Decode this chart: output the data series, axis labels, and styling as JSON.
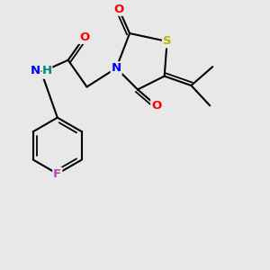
{
  "background_color": "#e8e8e8",
  "atom_colors": {
    "O": "#ff0000",
    "N": "#0000ff",
    "S": "#b8b800",
    "F": "#bb44bb",
    "H_color": "#008080",
    "C": "#000000"
  },
  "figsize": [
    3.0,
    3.0
  ],
  "dpi": 100
}
